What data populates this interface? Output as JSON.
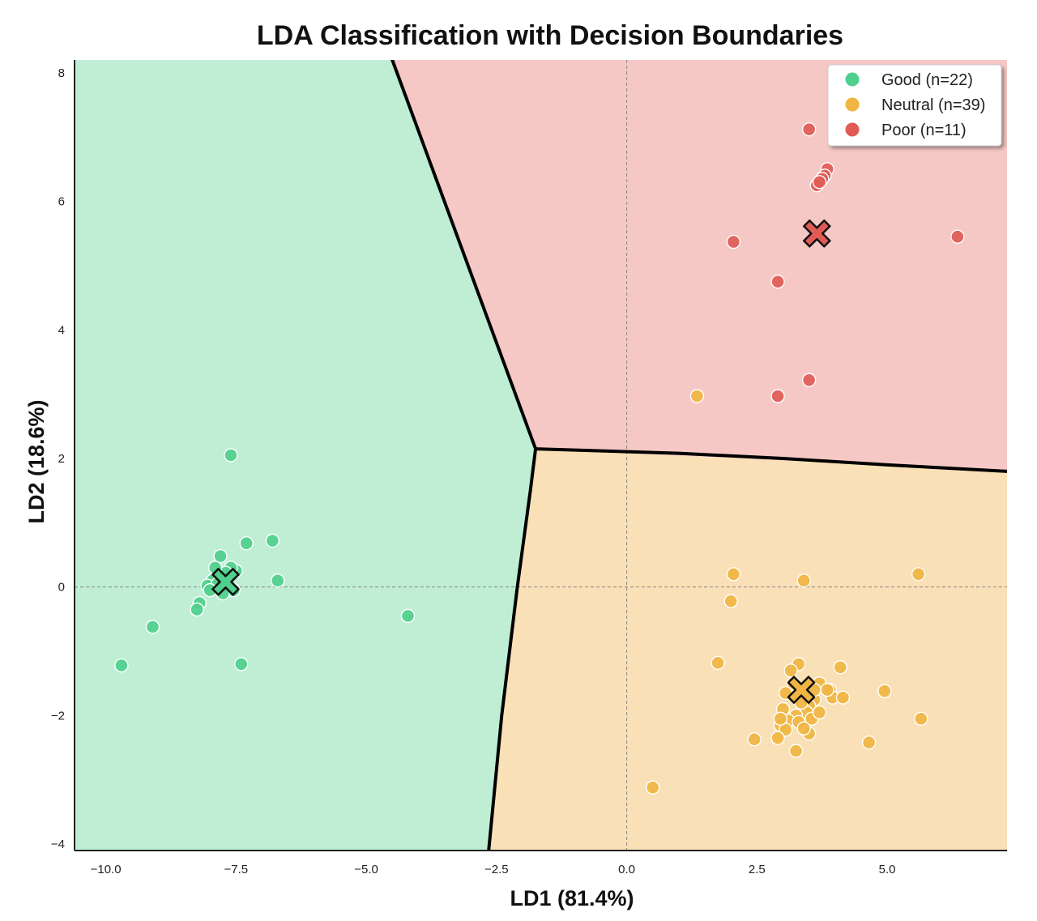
{
  "chart_data": {
    "type": "scatter",
    "title": "LDA Classification with Decision Boundaries",
    "xlabel": "LD1 (81.4%)",
    "ylabel": "LD2 (18.6%)",
    "xlim": [
      -10.6,
      7.3
    ],
    "ylim": [
      -4.1,
      8.2
    ],
    "xticks": [
      -10.0,
      -7.5,
      -5.0,
      -2.5,
      0.0,
      2.5,
      5.0
    ],
    "xtick_labels": [
      "−10.0",
      "−7.5",
      "−5.0",
      "−2.5",
      "0.0",
      "2.5",
      "5.0"
    ],
    "yticks": [
      -4,
      -2,
      0,
      2,
      4,
      6,
      8
    ],
    "ytick_labels": [
      "−4",
      "−2",
      "0",
      "2",
      "4",
      "6",
      "8"
    ],
    "grid": false,
    "reference_lines": {
      "x": 0,
      "y": 0
    },
    "legend_position": "top-right",
    "decision_regions": [
      {
        "class": "Good",
        "color": "#bfeed5",
        "polygon": [
          [
            -10.6,
            8.2
          ],
          [
            -4.5,
            8.2
          ],
          [
            -1.75,
            2.15
          ],
          [
            -2.1,
            0
          ],
          [
            -2.65,
            -4.1
          ],
          [
            -10.6,
            -4.1
          ]
        ]
      },
      {
        "class": "Poor",
        "color": "#f5c8c6",
        "polygon": [
          [
            -4.5,
            8.2
          ],
          [
            7.3,
            8.2
          ],
          [
            7.3,
            1.8
          ],
          [
            -1.75,
            2.15
          ]
        ]
      },
      {
        "class": "Neutral",
        "color": "#f9e0b6",
        "polygon": [
          [
            -1.75,
            2.15
          ],
          [
            7.3,
            1.8
          ],
          [
            7.3,
            -4.1
          ],
          [
            -2.65,
            -4.1
          ],
          [
            -2.1,
            0
          ]
        ]
      }
    ],
    "boundaries": [
      [
        [
          -4.5,
          8.2
        ],
        [
          -1.75,
          2.15
        ]
      ],
      [
        [
          -1.75,
          2.15
        ],
        [
          1.0,
          2.08
        ],
        [
          3.0,
          2.0
        ],
        [
          5.0,
          1.9
        ],
        [
          7.3,
          1.8
        ]
      ],
      [
        [
          -1.75,
          2.15
        ],
        [
          -1.85,
          1.5
        ],
        [
          -2.1,
          0
        ],
        [
          -2.4,
          -2.0
        ],
        [
          -2.65,
          -4.1
        ]
      ]
    ],
    "series": [
      {
        "name": "Good (n=22)",
        "color": "#4fcf8c",
        "centroid": [
          -7.7,
          0.08
        ],
        "points": [
          [
            -7.6,
            2.05
          ],
          [
            -7.8,
            0.48
          ],
          [
            -7.3,
            0.68
          ],
          [
            -6.8,
            0.72
          ],
          [
            -6.7,
            0.1
          ],
          [
            -7.5,
            0.25
          ],
          [
            -7.65,
            0.18
          ],
          [
            -7.95,
            0.1
          ],
          [
            -8.05,
            0.02
          ],
          [
            -7.85,
            0.05
          ],
          [
            -8.2,
            -0.25
          ],
          [
            -8.25,
            -0.35
          ],
          [
            -9.1,
            -0.62
          ],
          [
            -9.7,
            -1.22
          ],
          [
            -7.4,
            -1.2
          ],
          [
            -4.2,
            -0.45
          ],
          [
            -7.6,
            0.3
          ],
          [
            -8.0,
            -0.05
          ],
          [
            -7.55,
            -0.05
          ],
          [
            -7.7,
            0.22
          ],
          [
            -7.9,
            0.3
          ],
          [
            -7.75,
            -0.1
          ]
        ]
      },
      {
        "name": "Neutral (n=39)",
        "color": "#f0b542",
        "centroid": [
          3.35,
          -1.6
        ],
        "points": [
          [
            1.35,
            2.97
          ],
          [
            2.05,
            0.2
          ],
          [
            3.4,
            0.1
          ],
          [
            5.6,
            0.2
          ],
          [
            2.0,
            -0.22
          ],
          [
            1.75,
            -1.18
          ],
          [
            3.3,
            -1.2
          ],
          [
            4.1,
            -1.25
          ],
          [
            4.95,
            -1.62
          ],
          [
            3.9,
            -1.6
          ],
          [
            3.95,
            -1.72
          ],
          [
            4.15,
            -1.72
          ],
          [
            3.6,
            -1.75
          ],
          [
            3.5,
            -1.85
          ],
          [
            3.45,
            -1.95
          ],
          [
            3.25,
            -2.0
          ],
          [
            3.1,
            -2.08
          ],
          [
            2.95,
            -2.15
          ],
          [
            3.05,
            -2.22
          ],
          [
            3.3,
            -2.1
          ],
          [
            3.5,
            -2.28
          ],
          [
            2.9,
            -2.35
          ],
          [
            2.45,
            -2.37
          ],
          [
            4.65,
            -2.42
          ],
          [
            5.65,
            -2.05
          ],
          [
            3.25,
            -2.55
          ],
          [
            0.5,
            -3.12
          ],
          [
            3.7,
            -1.5
          ],
          [
            3.2,
            -1.5
          ],
          [
            3.35,
            -1.8
          ],
          [
            3.6,
            -1.6
          ],
          [
            3.0,
            -1.9
          ],
          [
            3.15,
            -1.3
          ],
          [
            3.55,
            -2.05
          ],
          [
            2.95,
            -2.05
          ],
          [
            3.4,
            -2.2
          ],
          [
            3.7,
            -1.95
          ],
          [
            3.85,
            -1.6
          ],
          [
            3.05,
            -1.65
          ]
        ]
      },
      {
        "name": "Poor (n=11)",
        "color": "#e05b55",
        "centroid": [
          3.65,
          5.5
        ],
        "points": [
          [
            3.5,
            7.12
          ],
          [
            3.85,
            6.5
          ],
          [
            3.8,
            6.4
          ],
          [
            3.75,
            6.35
          ],
          [
            3.65,
            6.25
          ],
          [
            2.05,
            5.37
          ],
          [
            6.35,
            5.45
          ],
          [
            2.9,
            4.75
          ],
          [
            3.5,
            3.22
          ],
          [
            2.9,
            2.97
          ],
          [
            3.7,
            6.3
          ]
        ]
      }
    ]
  }
}
